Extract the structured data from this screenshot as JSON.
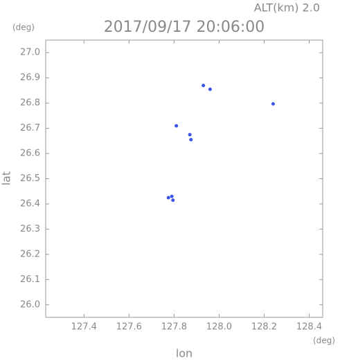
{
  "chart_data": {
    "type": "scatter",
    "title": "2017/09/17 20:06:00",
    "subtitle": "ALT(km) 2.0",
    "x_label": "lon",
    "y_label": "lat",
    "x_unit": "(deg)",
    "y_unit": "(deg)",
    "series": [
      {
        "color": "#3a55ea",
        "x": [
          127.93,
          127.96,
          128.24,
          127.81,
          127.87,
          127.875,
          127.775,
          127.79,
          127.795
        ],
        "values": [
          26.87,
          26.855,
          26.797,
          26.71,
          26.675,
          26.655,
          26.425,
          26.43,
          26.415
        ]
      }
    ],
    "xlim": [
      127.23,
      128.46
    ],
    "xticks": [
      127.4,
      127.6,
      127.8,
      {
        "value": 128.0,
        "label": "128.0"
      },
      128.2,
      128.4
    ],
    "ylim": [
      25.95,
      27.05
    ],
    "yticks": [
      {
        "value": 26.0,
        "label": "26.0"
      },
      26.1,
      26.2,
      26.3,
      26.4,
      26.5,
      26.6,
      26.7,
      26.8,
      26.9,
      {
        "value": 27.0,
        "label": "27.0"
      }
    ]
  }
}
